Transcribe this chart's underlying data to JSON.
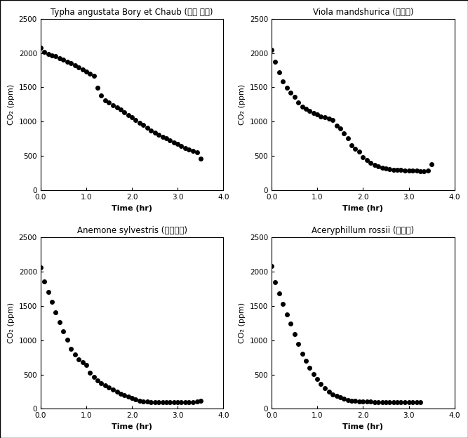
{
  "panels": [
    {
      "title": "Typha angustata Bory et Chaub (애기 부들)",
      "ylabel": "CO₂ (ppm)",
      "xlabel": "Time (hr)",
      "xlim": [
        0,
        4.0
      ],
      "ylim": [
        0,
        2500
      ],
      "xticks": [
        0.0,
        1.0,
        2.0,
        3.0,
        4.0
      ],
      "yticks": [
        0,
        500,
        1000,
        1500,
        2000,
        2500
      ],
      "x": [
        0.0,
        0.08,
        0.17,
        0.25,
        0.33,
        0.42,
        0.5,
        0.58,
        0.67,
        0.75,
        0.83,
        0.92,
        1.0,
        1.08,
        1.17,
        1.25,
        1.33,
        1.42,
        1.5,
        1.58,
        1.67,
        1.75,
        1.83,
        1.92,
        2.0,
        2.08,
        2.17,
        2.25,
        2.33,
        2.42,
        2.5,
        2.58,
        2.67,
        2.75,
        2.83,
        2.92,
        3.0,
        3.08,
        3.17,
        3.25,
        3.33,
        3.42,
        3.5
      ],
      "y": [
        2080,
        2020,
        1990,
        1970,
        1950,
        1920,
        1900,
        1870,
        1850,
        1820,
        1790,
        1760,
        1730,
        1700,
        1670,
        1490,
        1380,
        1310,
        1280,
        1240,
        1210,
        1180,
        1140,
        1100,
        1060,
        1020,
        980,
        950,
        910,
        870,
        840,
        810,
        780,
        760,
        730,
        700,
        680,
        650,
        620,
        590,
        570,
        550,
        460
      ]
    },
    {
      "title": "Viola mandshurica (제비꽃)",
      "ylabel": "CO₂ (ppm)",
      "xlabel": "Time (hr)",
      "xlim": [
        0,
        4.0
      ],
      "ylim": [
        0,
        2500
      ],
      "xticks": [
        0.0,
        1.0,
        2.0,
        3.0,
        4.0
      ],
      "yticks": [
        0,
        500,
        1000,
        1500,
        2000,
        2500
      ],
      "x": [
        0.0,
        0.08,
        0.17,
        0.25,
        0.33,
        0.42,
        0.5,
        0.58,
        0.67,
        0.75,
        0.83,
        0.92,
        1.0,
        1.08,
        1.17,
        1.25,
        1.33,
        1.42,
        1.5,
        1.58,
        1.67,
        1.75,
        1.83,
        1.92,
        2.0,
        2.08,
        2.17,
        2.25,
        2.33,
        2.42,
        2.5,
        2.58,
        2.67,
        2.75,
        2.83,
        2.92,
        3.0,
        3.08,
        3.17,
        3.25,
        3.33,
        3.42,
        3.5
      ],
      "y": [
        2050,
        1870,
        1720,
        1590,
        1490,
        1420,
        1360,
        1280,
        1220,
        1190,
        1160,
        1130,
        1110,
        1080,
        1060,
        1040,
        1020,
        940,
        900,
        830,
        760,
        660,
        610,
        560,
        480,
        440,
        400,
        370,
        350,
        330,
        320,
        310,
        300,
        300,
        295,
        290,
        285,
        285,
        285,
        280,
        280,
        285,
        375
      ]
    },
    {
      "title": "Anemone sylvestris (아네모네)",
      "ylabel": "CO₂ (ppm)",
      "xlabel": "Time (hr)",
      "xlim": [
        0,
        4.0
      ],
      "ylim": [
        0,
        2500
      ],
      "xticks": [
        0.0,
        1.0,
        2.0,
        3.0,
        4.0
      ],
      "yticks": [
        0,
        500,
        1000,
        1500,
        2000,
        2500
      ],
      "x": [
        0.0,
        0.08,
        0.17,
        0.25,
        0.33,
        0.42,
        0.5,
        0.58,
        0.67,
        0.75,
        0.83,
        0.92,
        1.0,
        1.08,
        1.17,
        1.25,
        1.33,
        1.42,
        1.5,
        1.58,
        1.67,
        1.75,
        1.83,
        1.92,
        2.0,
        2.08,
        2.17,
        2.25,
        2.33,
        2.42,
        2.5,
        2.58,
        2.67,
        2.75,
        2.83,
        2.92,
        3.0,
        3.08,
        3.17,
        3.25,
        3.33,
        3.42,
        3.5
      ],
      "y": [
        2060,
        1860,
        1700,
        1560,
        1410,
        1260,
        1130,
        1010,
        870,
        790,
        720,
        680,
        640,
        530,
        470,
        410,
        370,
        340,
        310,
        280,
        250,
        220,
        195,
        175,
        155,
        135,
        120,
        110,
        105,
        100,
        100,
        100,
        95,
        95,
        95,
        95,
        95,
        95,
        95,
        95,
        100,
        105,
        115
      ]
    },
    {
      "title": "Aceryphillum rossii (돌단풍)",
      "ylabel": "CO₂ (ppm)",
      "xlabel": "Time (hr)",
      "xlim": [
        0,
        4.0
      ],
      "ylim": [
        0,
        2500
      ],
      "xticks": [
        0.0,
        1.0,
        2.0,
        3.0,
        4.0
      ],
      "yticks": [
        0,
        500,
        1000,
        1500,
        2000,
        2500
      ],
      "x": [
        0.0,
        0.08,
        0.17,
        0.25,
        0.33,
        0.42,
        0.5,
        0.58,
        0.67,
        0.75,
        0.83,
        0.92,
        1.0,
        1.08,
        1.17,
        1.25,
        1.33,
        1.42,
        1.5,
        1.58,
        1.67,
        1.75,
        1.83,
        1.92,
        2.0,
        2.08,
        2.17,
        2.25,
        2.33,
        2.42,
        2.5,
        2.58,
        2.67,
        2.75,
        2.83,
        2.92,
        3.0,
        3.08,
        3.17,
        3.25
      ],
      "y": [
        2080,
        1850,
        1680,
        1530,
        1380,
        1240,
        1090,
        950,
        800,
        700,
        600,
        510,
        430,
        360,
        300,
        250,
        210,
        185,
        165,
        145,
        130,
        120,
        115,
        110,
        110,
        105,
        105,
        100,
        100,
        100,
        100,
        100,
        100,
        100,
        100,
        100,
        100,
        100,
        100,
        100
      ]
    }
  ],
  "marker_color": "black",
  "marker_size": 4,
  "marker": "o",
  "bg_color": "white",
  "title_fontsize": 8.5,
  "label_fontsize": 8,
  "tick_fontsize": 7.5,
  "fig_border_color": "black",
  "fig_border_lw": 1.0
}
